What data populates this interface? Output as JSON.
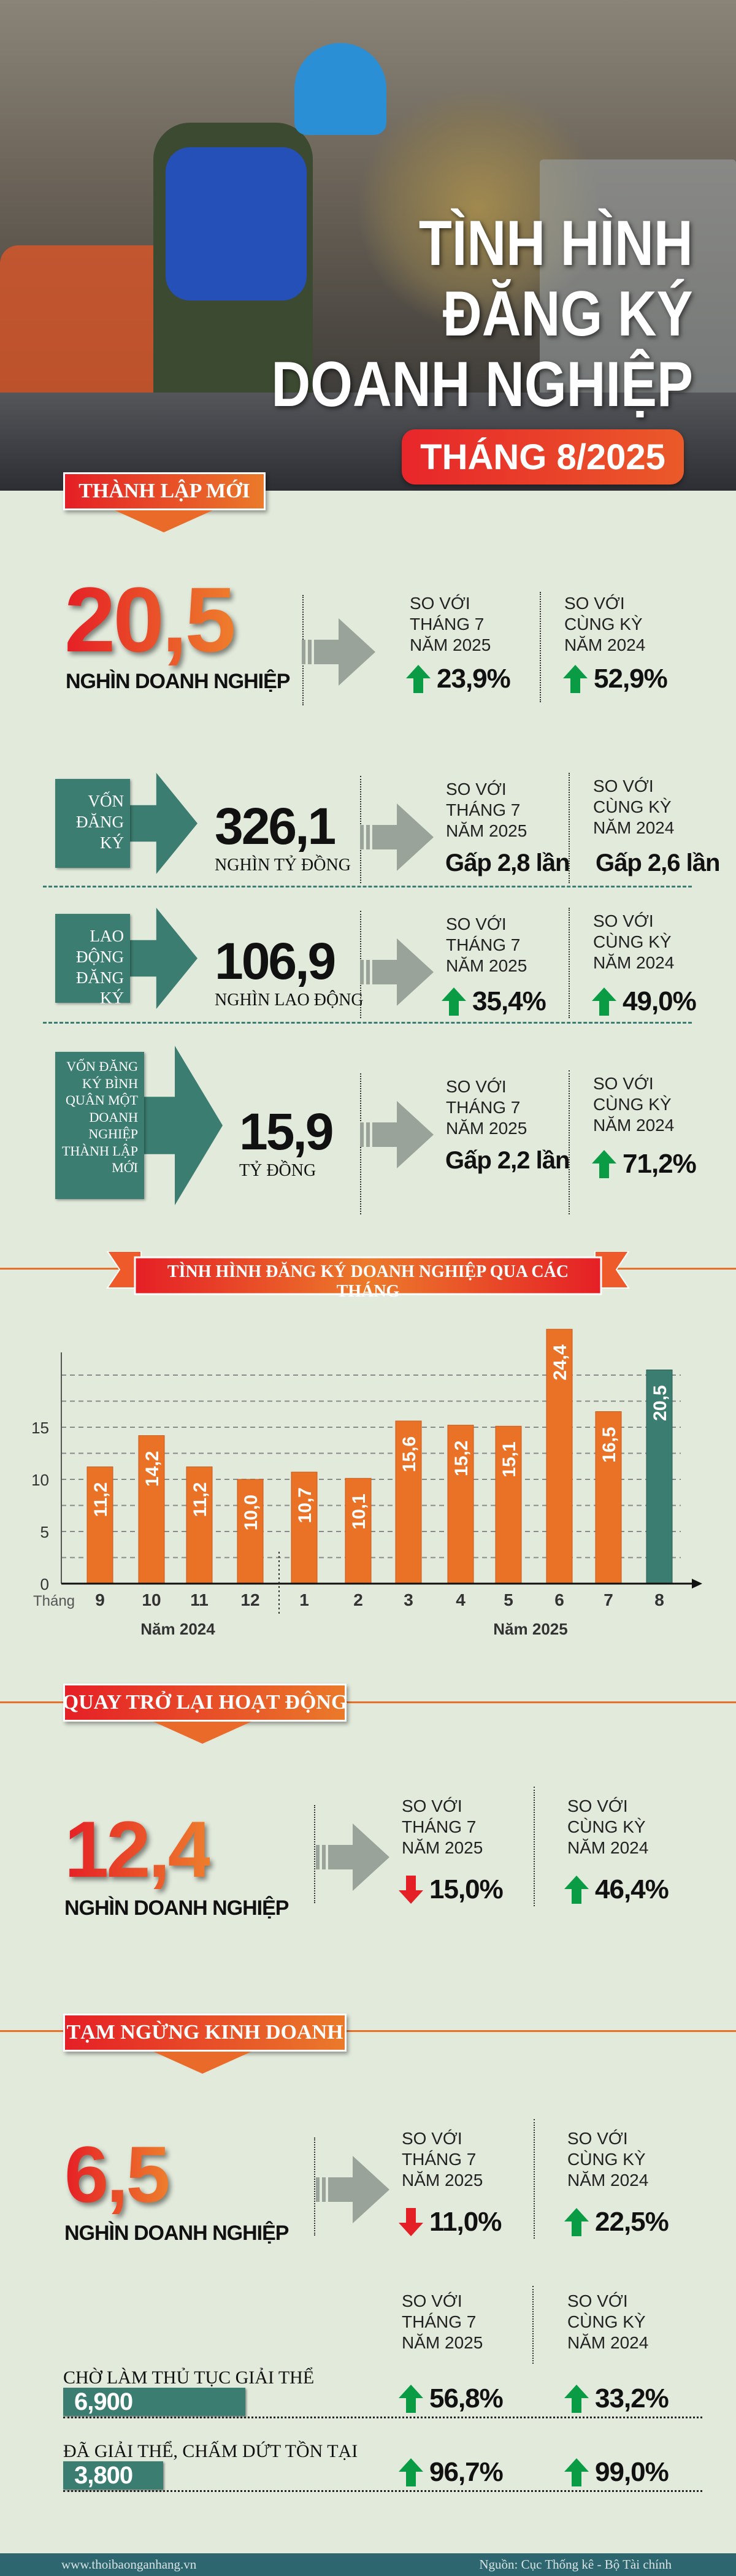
{
  "header": {
    "title_lines": [
      "TÌNH HÌNH",
      "ĐĂNG KÝ",
      "DOANH NGHIỆP"
    ],
    "period": "THÁNG 8/2025"
  },
  "colors": {
    "orange": "#ea7a2a",
    "red": "#e51f26",
    "teal": "#3b7d70",
    "up": "#0a9b45",
    "down": "#e51f26",
    "background": "#e2eadc"
  },
  "compare_labels": {
    "vs_month": [
      "SO VỚI",
      "THÁNG 7",
      "NĂM 2025"
    ],
    "vs_year": [
      "SO VỚI",
      "CÙNG KỲ",
      "NĂM 2024"
    ]
  },
  "new_businesses": {
    "section_label": "THÀNH LẬP MỚI",
    "value": "20,5",
    "unit": "NGHÌN DOANH NGHIỆP",
    "vs_month": {
      "direction": "up",
      "text": "23,9%"
    },
    "vs_year": {
      "direction": "up",
      "text": "52,9%"
    },
    "metrics": [
      {
        "label": "VỐN ĐĂNG KÝ",
        "value": "326,1",
        "unit": "NGHÌN TỶ ĐỒNG",
        "vs_month": {
          "direction": "none",
          "text": "Gấp 2,8 lần"
        },
        "vs_year": {
          "direction": "none",
          "text": "Gấp 2,6 lần"
        }
      },
      {
        "label": "LAO ĐỘNG ĐĂNG KÝ",
        "value": "106,9",
        "unit": "NGHÌN LAO ĐỘNG",
        "vs_month": {
          "direction": "up",
          "text": "35,4%"
        },
        "vs_year": {
          "direction": "up",
          "text": "49,0%"
        }
      },
      {
        "label": "VỐN ĐĂNG KÝ BÌNH QUÂN MỘT DOANH NGHIỆP THÀNH LẬP MỚI",
        "value": "15,9",
        "unit": "TỶ ĐỒNG",
        "vs_month": {
          "direction": "none",
          "text": "Gấp 2,2 lần"
        },
        "vs_year": {
          "direction": "up",
          "text": "71,2%"
        }
      }
    ]
  },
  "chart_data": {
    "type": "bar",
    "title": "TÌNH HÌNH ĐĂNG KÝ DOANH NGHIỆP QUA CÁC THÁNG",
    "xlabel": "Tháng",
    "ylabel": "",
    "categories": [
      "9",
      "10",
      "11",
      "12",
      "1",
      "2",
      "3",
      "4",
      "5",
      "6",
      "7",
      "8"
    ],
    "values": [
      11.2,
      14.2,
      11.2,
      10.0,
      10.7,
      10.1,
      15.6,
      15.2,
      15.1,
      24.4,
      16.5,
      20.5
    ],
    "value_labels": [
      "11,2",
      "14,2",
      "11,2",
      "10,0",
      "10,7",
      "10,1",
      "15,6",
      "15,2",
      "15,1",
      "24,4",
      "16,5",
      "20,5"
    ],
    "highlight_index": 11,
    "year_groups": [
      {
        "label": "Năm 2024",
        "from": 0,
        "to": 3
      },
      {
        "label": "Năm 2025",
        "from": 4,
        "to": 11
      }
    ],
    "yticks": [
      0,
      5,
      10,
      15
    ],
    "ytick_labels": [
      "0",
      "5",
      "10",
      "15"
    ],
    "ylim": [
      0,
      25
    ],
    "grid": true
  },
  "returned": {
    "section_label": "QUAY TRỞ LẠI HOẠT ĐỘNG",
    "value": "12,4",
    "unit": "NGHÌN DOANH NGHIỆP",
    "vs_month": {
      "direction": "down",
      "text": "15,0%"
    },
    "vs_year": {
      "direction": "up",
      "text": "46,4%"
    }
  },
  "suspended": {
    "section_label": "TẠM NGỪNG KINH DOANH",
    "value": "6,5",
    "unit": "NGHÌN DOANH NGHIỆP",
    "vs_month": {
      "direction": "down",
      "text": "11,0%"
    },
    "vs_year": {
      "direction": "up",
      "text": "22,5%"
    },
    "rows": [
      {
        "label": "CHỜ LÀM THỦ TỤC GIẢI THỂ",
        "value": "6,900",
        "share": 1.0,
        "vs_month": {
          "direction": "up",
          "text": "56,8%"
        },
        "vs_year": {
          "direction": "up",
          "text": "33,2%"
        }
      },
      {
        "label": "ĐÃ GIẢI THỂ, CHẤM DỨT TỒN TẠI",
        "value": "3,800",
        "share": 0.55,
        "vs_month": {
          "direction": "up",
          "text": "96,7%"
        },
        "vs_year": {
          "direction": "up",
          "text": "99,0%"
        }
      }
    ]
  },
  "footer": {
    "website": "www.thoibaonganhang.vn",
    "source": "Nguồn: Cục Thống kê - Bộ Tài chính"
  }
}
